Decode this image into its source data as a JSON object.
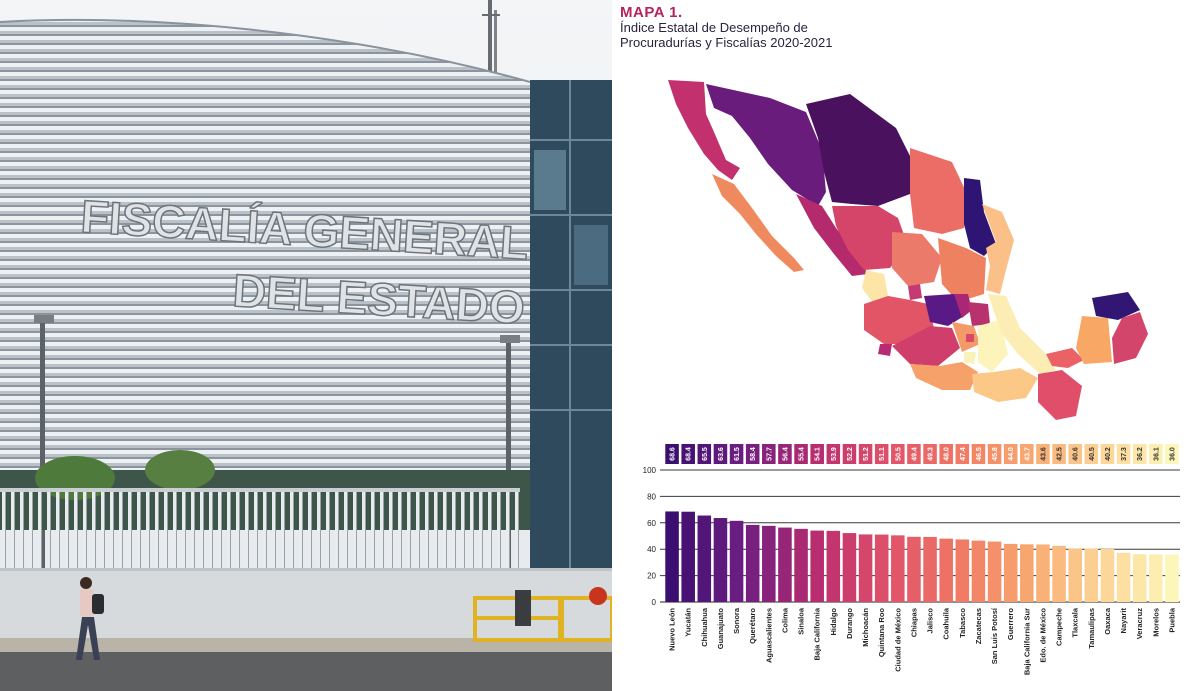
{
  "photo": {
    "sign_line_1": "FISCALÍA GENERAL",
    "sign_line_2": "DEL ESTADO"
  },
  "map": {
    "label": "MAPA 1.",
    "title_line_1": "Índice Estatal de Desempeño de",
    "title_line_2": "Procuradurías y Fiscalías 2020-2021"
  },
  "colors": {
    "label_accent": "#b5245f",
    "scale_high": "#3b0f6f",
    "scale_mid": "#e0507a",
    "scale_low": "#fcf6b8"
  },
  "chart_data": {
    "type": "bar",
    "title": "",
    "xlabel": "",
    "ylabel": "",
    "ylim": [
      0,
      100
    ],
    "yticks": [
      0,
      20,
      40,
      60,
      80,
      100
    ],
    "grid": true,
    "categories": [
      "Nuevo León",
      "Yucatán",
      "Chihuahua",
      "Guanajuato",
      "Sonora",
      "Querétaro",
      "Aguascalientes",
      "Colima",
      "Sinaloa",
      "Baja California",
      "Hidalgo",
      "Durango",
      "Michoacán",
      "Quintana Roo",
      "Ciudad de México",
      "Chiapas",
      "Jalisco",
      "Coahuila",
      "Tabasco",
      "Zacatecas",
      "San Luis Potosí",
      "Guerrero",
      "Baja California Sur",
      "Edo. de México",
      "Campeche",
      "Tlaxcala",
      "Tamaulipas",
      "Oaxaca",
      "Nayarit",
      "Veracruz",
      "Morelos",
      "Puebla"
    ],
    "values": [
      68.6,
      68.4,
      65.5,
      63.6,
      61.5,
      58.4,
      57.7,
      56.4,
      55.4,
      54.1,
      53.9,
      52.2,
      51.2,
      51.1,
      50.5,
      49.4,
      49.3,
      48.0,
      47.4,
      46.5,
      45.8,
      44.0,
      43.7,
      43.6,
      42.5,
      40.6,
      40.5,
      40.2,
      37.3,
      36.2,
      36.1,
      36.0
    ],
    "value_labels": [
      "68.6",
      "68.4",
      "65.5",
      "63.6",
      "61.5",
      "58.4",
      "57.7",
      "56.4",
      "55.4",
      "54.1",
      "53.9",
      "52.2",
      "51.2",
      "51.1",
      "50.5",
      "49.4",
      "49.3",
      "48.0",
      "47.4",
      "46.5",
      "45.8",
      "44.0",
      "43.7",
      "43.6",
      "42.5",
      "40.6",
      "40.5",
      "40.2",
      "37.3",
      "36.2",
      "36.1",
      "36.0"
    ]
  }
}
